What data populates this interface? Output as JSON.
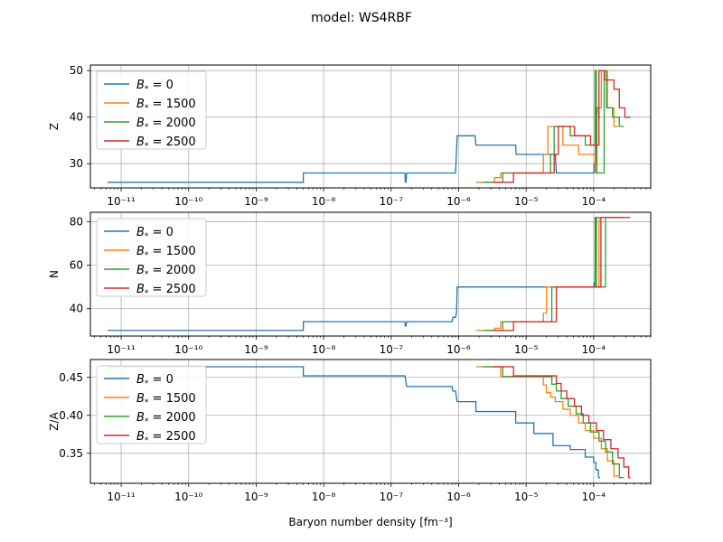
{
  "figure": {
    "title": "model: WS4RBF",
    "xlabel": "Baryon number density [fm⁻³]"
  },
  "legend": {
    "placement": "upper-left",
    "entries": [
      {
        "prefix": "B",
        "sub": "*",
        "value": " = 0",
        "color": "#1f77b4"
      },
      {
        "prefix": "B",
        "sub": "*",
        "value": " = 1500",
        "color": "#ff7f0e"
      },
      {
        "prefix": "B",
        "sub": "*",
        "value": " = 2000",
        "color": "#2ca02c"
      },
      {
        "prefix": "B",
        "sub": "*",
        "value": " = 2500",
        "color": "#d62728"
      }
    ]
  },
  "chart_data": [
    {
      "type": "line",
      "ylabel": "Z",
      "xscale": "log",
      "xlim": [
        3.5e-12,
        0.0007
      ],
      "ylim": [
        24.8,
        51.2
      ],
      "yticks": [
        30,
        40,
        50
      ],
      "grid": true,
      "series": [
        {
          "name": "B* = 0",
          "color": "#1f77b4",
          "x": [
            6.3e-12,
            5e-09,
            5e-09,
            1.6e-07,
            1.62e-07,
            1.65e-07,
            1.7e-07,
            9e-07,
            9.5e-07,
            1.75e-06,
            1.8e-06,
            7e-06,
            7.1e-06,
            2.7e-05,
            2.8e-05,
            0.0001,
            0.000102,
            0.000106,
            0.000108,
            0.000118,
            0.00012,
            0.000125
          ],
          "y": [
            26,
            26,
            28,
            28,
            26,
            26,
            28,
            28,
            36,
            36,
            34,
            34,
            32,
            32,
            28,
            28,
            30,
            30,
            42,
            42,
            40,
            40
          ]
        },
        {
          "name": "B* = 1500",
          "color": "#ff7f0e",
          "x": [
            1.8e-06,
            3.4e-06,
            3.4e-06,
            4.2e-06,
            4.2e-06,
            1.8e-05,
            1.8e-05,
            2.1e-05,
            2.1e-05,
            3.5e-05,
            3.5e-05,
            6e-05,
            6e-05,
            0.000105,
            0.000105,
            0.000112,
            0.000112,
            0.00013,
            0.00013,
            0.00016,
            0.00016,
            0.0002,
            0.0002,
            0.00023
          ],
          "y": [
            26,
            26,
            27,
            27,
            28,
            28,
            32,
            32,
            38,
            38,
            34,
            34,
            32,
            32,
            28,
            28,
            42,
            42,
            50,
            50,
            42,
            42,
            38,
            38
          ]
        },
        {
          "name": "B* = 2000",
          "color": "#2ca02c",
          "x": [
            2.3e-06,
            4.5e-06,
            4.5e-06,
            2.3e-05,
            2.3e-05,
            2.6e-05,
            2.6e-05,
            4.5e-05,
            4.5e-05,
            7.5e-05,
            7.5e-05,
            0.000105,
            0.000105,
            0.00011,
            0.00011,
            0.000143,
            0.000143,
            0.000155,
            0.000155,
            0.00019,
            0.00019,
            0.00024,
            0.00024,
            0.00028
          ],
          "y": [
            26,
            26,
            28,
            28,
            32,
            32,
            38,
            38,
            36,
            36,
            34,
            34,
            50,
            50,
            28,
            28,
            50,
            50,
            42,
            42,
            40,
            40,
            38,
            38
          ]
        },
        {
          "name": "B* = 2500",
          "color": "#d62728",
          "x": [
            3.2e-06,
            6.5e-06,
            6.5e-06,
            2.6e-05,
            2.6e-05,
            3e-05,
            3e-05,
            5.2e-05,
            5.2e-05,
            9e-05,
            9e-05,
            0.00012,
            0.00012,
            0.000145,
            0.000145,
            0.0002,
            0.0002,
            0.00024,
            0.00024,
            0.00029,
            0.00029,
            0.00035
          ],
          "y": [
            26,
            26,
            28,
            28,
            32,
            32,
            38,
            38,
            36,
            36,
            34,
            34,
            50,
            50,
            48,
            48,
            46,
            46,
            42,
            42,
            40,
            40
          ]
        }
      ]
    },
    {
      "type": "line",
      "ylabel": "N",
      "xscale": "log",
      "xlim": [
        3.5e-12,
        0.0007
      ],
      "ylim": [
        27.4,
        84.4
      ],
      "yticks": [
        40,
        60,
        80
      ],
      "grid": true,
      "series": [
        {
          "name": "B* = 0",
          "color": "#1f77b4",
          "x": [
            6.3e-12,
            5e-09,
            5e-09,
            1.6e-07,
            1.62e-07,
            1.65e-07,
            1.7e-07,
            8e-07,
            8.2e-07,
            9e-07,
            9.3e-07,
            9.5e-07,
            0.0001,
            0.000102,
            0.000105,
            0.000107,
            0.000125
          ],
          "y": [
            30,
            30,
            34,
            34,
            32,
            32,
            34,
            34,
            36,
            36,
            38,
            50,
            50,
            52,
            52,
            82,
            82
          ]
        },
        {
          "name": "B* = 1500",
          "color": "#ff7f0e",
          "x": [
            1.8e-06,
            3.4e-06,
            3.4e-06,
            4.2e-06,
            4.2e-06,
            1.8e-05,
            1.8e-05,
            2e-05,
            2e-05,
            0.00012,
            0.00012,
            0.00023
          ],
          "y": [
            30,
            30,
            31,
            31,
            34,
            34,
            38,
            38,
            50,
            50,
            82,
            82
          ]
        },
        {
          "name": "B* = 2000",
          "color": "#2ca02c",
          "x": [
            2.3e-06,
            4.5e-06,
            4.5e-06,
            2.4e-05,
            2.4e-05,
            0.000105,
            0.000105,
            0.00011,
            0.00011,
            0.00015,
            0.00015,
            0.00028
          ],
          "y": [
            30,
            30,
            34,
            34,
            50,
            50,
            82,
            82,
            50,
            50,
            82,
            82
          ]
        },
        {
          "name": "B* = 2500",
          "color": "#d62728",
          "x": [
            3.2e-06,
            6.5e-06,
            6.5e-06,
            2.8e-05,
            2.8e-05,
            0.000128,
            0.000128,
            0.000138,
            0.000138,
            0.00035
          ],
          "y": [
            30,
            30,
            34,
            34,
            50,
            50,
            82,
            82,
            82,
            82
          ]
        }
      ]
    },
    {
      "type": "line",
      "ylabel": "Z/A",
      "xscale": "log",
      "xlim": [
        3.5e-12,
        0.0007
      ],
      "ylim": [
        0.3105,
        0.4735
      ],
      "yticks": [
        0.35,
        0.4,
        0.45
      ],
      "grid": true,
      "series": [
        {
          "name": "B* = 0",
          "color": "#1f77b4",
          "x": [
            6.3e-12,
            5e-09,
            5e-09,
            1.6e-07,
            1.7e-07,
            8e-07,
            8.2e-07,
            9e-07,
            9.5e-07,
            1.8e-06,
            1.8e-06,
            7e-06,
            7e-06,
            1.3e-05,
            1.3e-05,
            2.5e-05,
            2.5e-05,
            4.5e-05,
            4.5e-05,
            7.5e-05,
            7.5e-05,
            0.0001,
            0.0001,
            0.000108,
            0.000108,
            0.000118,
            0.000118,
            0.000125
          ],
          "y": [
            0.464,
            0.464,
            0.452,
            0.452,
            0.438,
            0.438,
            0.432,
            0.432,
            0.418,
            0.418,
            0.405,
            0.405,
            0.39,
            0.39,
            0.376,
            0.376,
            0.36,
            0.36,
            0.355,
            0.355,
            0.345,
            0.345,
            0.338,
            0.338,
            0.328,
            0.328,
            0.318,
            0.318
          ]
        },
        {
          "name": "B* = 1500",
          "color": "#ff7f0e",
          "x": [
            1.8e-06,
            4.2e-06,
            4.2e-06,
            1.8e-05,
            1.8e-05,
            2e-05,
            2e-05,
            2.3e-05,
            2.3e-05,
            2.7e-05,
            2.7e-05,
            3.5e-05,
            3.5e-05,
            4.5e-05,
            4.5e-05,
            6e-05,
            6e-05,
            7.5e-05,
            7.5e-05,
            0.0001,
            0.0001,
            0.00013,
            0.00013,
            0.00016,
            0.00016,
            0.0002,
            0.0002,
            0.00023
          ],
          "y": [
            0.464,
            0.464,
            0.451,
            0.451,
            0.44,
            0.44,
            0.43,
            0.43,
            0.424,
            0.424,
            0.418,
            0.418,
            0.408,
            0.408,
            0.4,
            0.4,
            0.39,
            0.39,
            0.38,
            0.38,
            0.37,
            0.37,
            0.356,
            0.356,
            0.34,
            0.34,
            0.32,
            0.32
          ]
        },
        {
          "name": "B* = 2000",
          "color": "#2ca02c",
          "x": [
            2.3e-06,
            4.5e-06,
            4.5e-06,
            2.4e-05,
            2.4e-05,
            2.8e-05,
            2.8e-05,
            3.3e-05,
            3.3e-05,
            4.2e-05,
            4.2e-05,
            5.5e-05,
            5.5e-05,
            7e-05,
            7e-05,
            9e-05,
            9e-05,
            0.00012,
            0.00012,
            0.00015,
            0.00015,
            0.00019,
            0.00019,
            0.00024,
            0.00024,
            0.00028
          ],
          "y": [
            0.464,
            0.464,
            0.451,
            0.451,
            0.441,
            0.441,
            0.432,
            0.432,
            0.422,
            0.422,
            0.412,
            0.412,
            0.402,
            0.402,
            0.39,
            0.39,
            0.378,
            0.378,
            0.366,
            0.366,
            0.352,
            0.352,
            0.336,
            0.336,
            0.318,
            0.318
          ]
        },
        {
          "name": "B* = 2500",
          "color": "#d62728",
          "x": [
            3.2e-06,
            6.5e-06,
            6.5e-06,
            2.8e-05,
            2.8e-05,
            3.3e-05,
            3.3e-05,
            4e-05,
            4e-05,
            5.2e-05,
            5.2e-05,
            6.6e-05,
            6.6e-05,
            8.5e-05,
            8.5e-05,
            0.00011,
            0.00011,
            0.00014,
            0.00014,
            0.00018,
            0.00018,
            0.00023,
            0.00023,
            0.00028,
            0.00028,
            0.00033,
            0.00033,
            0.00035
          ],
          "y": [
            0.464,
            0.464,
            0.452,
            0.452,
            0.442,
            0.442,
            0.432,
            0.432,
            0.422,
            0.422,
            0.412,
            0.412,
            0.4,
            0.4,
            0.39,
            0.39,
            0.38,
            0.38,
            0.368,
            0.368,
            0.356,
            0.356,
            0.344,
            0.344,
            0.332,
            0.332,
            0.318,
            0.318
          ]
        }
      ]
    }
  ]
}
